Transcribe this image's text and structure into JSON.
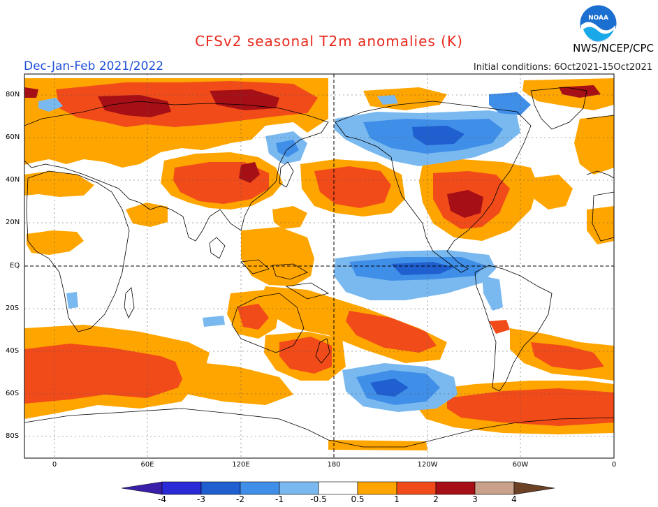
{
  "title": "CFSv2 seasonal T2m anomalies (K)",
  "season": "Dec-Jan-Feb 2021/2022",
  "initial_conditions": "Initial conditions: 6Oct2021-15Oct2021",
  "agency": "NWS/NCEP/CPC",
  "logo_text": "NOAA",
  "colors": {
    "title": "#e8281c",
    "season": "#1f4fd8",
    "land_outline": "#000000",
    "grid": "#555555"
  },
  "lat_labels": [
    "80N",
    "60N",
    "40N",
    "20N",
    "EQ",
    "20S",
    "40S",
    "60S",
    "80S"
  ],
  "lon_labels": [
    "0",
    "60E",
    "120E",
    "180",
    "120W",
    "60W",
    "0"
  ],
  "colorbar": {
    "labels": [
      "-4",
      "-3",
      "-2",
      "-1",
      "-0.5",
      "0.5",
      "1",
      "2",
      "3",
      "4"
    ],
    "bins": [
      {
        "range": "< -4",
        "color": "#3a1fa8"
      },
      {
        "range": "-4 to -3",
        "color": "#2a2ad6"
      },
      {
        "range": "-3 to -2",
        "color": "#1f5fd0"
      },
      {
        "range": "-2 to -1",
        "color": "#3f8ee8"
      },
      {
        "range": "-1 to -0.5",
        "color": "#7ab9f0"
      },
      {
        "range": "-0.5 to 0.5",
        "color": "#ffffff"
      },
      {
        "range": "0.5 to 1",
        "color": "#ffa500"
      },
      {
        "range": "1 to 2",
        "color": "#f24b1a"
      },
      {
        "range": "2 to 3",
        "color": "#a50f15"
      },
      {
        "range": "3 to 4",
        "color": "#c9a08a"
      },
      {
        "range": "> 4",
        "color": "#6b4226"
      }
    ]
  }
}
